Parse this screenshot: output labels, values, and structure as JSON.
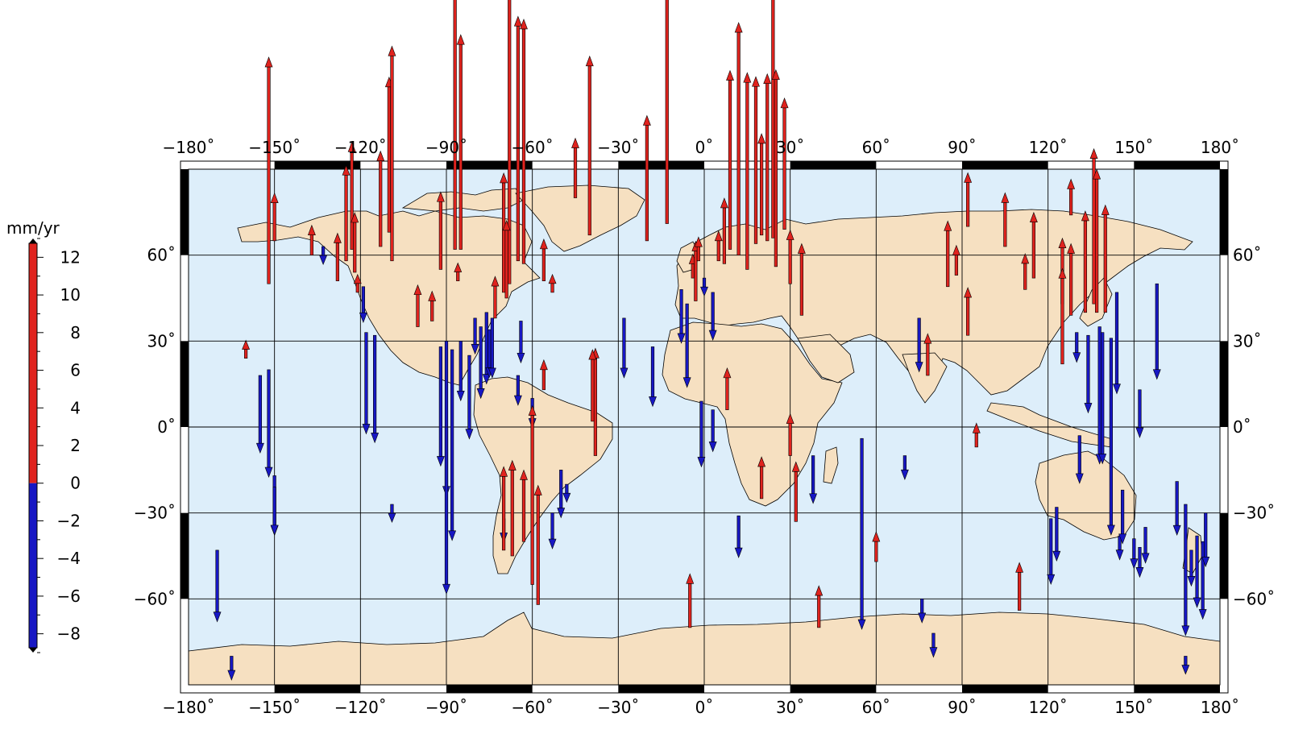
{
  "map": {
    "extent": {
      "lon": [
        -180,
        180
      ],
      "lat": [
        -90,
        90
      ]
    },
    "projection": "cylindrical",
    "lon_ticks": [
      -180,
      -150,
      -120,
      -90,
      -60,
      -30,
      0,
      30,
      60,
      90,
      120,
      150,
      180
    ],
    "lat_ticks": [
      60,
      30,
      0,
      -30,
      -60
    ],
    "lon_tick_labels": [
      "−180˚",
      "−150˚",
      "−120˚",
      "−90˚",
      "−60˚",
      "−30˚",
      "0˚",
      "30˚",
      "60˚",
      "90˚",
      "120˚",
      "150˚",
      "180˚"
    ],
    "lat_tick_labels": [
      "60˚",
      "30˚",
      "0˚",
      "−30˚",
      "−60˚"
    ],
    "grid": true,
    "colors": {
      "ocean": "#ddeefa",
      "land": "#f6e0c1",
      "coast": "#000000",
      "up": "#e0231e",
      "down": "#1717c4"
    }
  },
  "colorbar": {
    "unit_label": "mm/yr",
    "range": [
      -9,
      13
    ],
    "split_value": 0,
    "tick_labels": [
      "12",
      "10",
      "8",
      "6",
      "4",
      "2",
      "0",
      "−2",
      "−4",
      "−6",
      "−8"
    ],
    "tick_values": [
      12,
      10,
      8,
      6,
      4,
      2,
      0,
      -2,
      -4,
      -6,
      -8
    ]
  },
  "chart_data": {
    "type": "scatter",
    "description_units": "lon/lat in degrees, v = vertical rate in mm/yr (positive up)",
    "stations": [
      {
        "lon": -152,
        "lat": 50,
        "v": 38
      },
      {
        "lon": -150,
        "lat": 65,
        "v": 8
      },
      {
        "lon": -137,
        "lat": 60,
        "v": 5
      },
      {
        "lon": -133,
        "lat": 63,
        "v": -3
      },
      {
        "lon": -128,
        "lat": 51,
        "v": 8
      },
      {
        "lon": -125,
        "lat": 58,
        "v": 16
      },
      {
        "lon": -123,
        "lat": 62,
        "v": 18
      },
      {
        "lon": -122,
        "lat": 54,
        "v": 10
      },
      {
        "lon": -121,
        "lat": 47,
        "v": 3
      },
      {
        "lon": -119,
        "lat": 49,
        "v": -6
      },
      {
        "lon": -118,
        "lat": 33,
        "v": -17
      },
      {
        "lon": -115,
        "lat": 32,
        "v": -18
      },
      {
        "lon": -113,
        "lat": 63,
        "v": 16
      },
      {
        "lon": -110,
        "lat": 68,
        "v": 26
      },
      {
        "lon": -109,
        "lat": 58,
        "v": 36
      },
      {
        "lon": -100,
        "lat": 35,
        "v": 7
      },
      {
        "lon": -95,
        "lat": 37,
        "v": 5
      },
      {
        "lon": -92,
        "lat": 55,
        "v": 13
      },
      {
        "lon": -87,
        "lat": 62,
        "v": 47
      },
      {
        "lon": -85,
        "lat": 62,
        "v": 36
      },
      {
        "lon": -86,
        "lat": 51,
        "v": 3
      },
      {
        "lon": -92,
        "lat": 28,
        "v": -20
      },
      {
        "lon": -90,
        "lat": 30,
        "v": -26
      },
      {
        "lon": -88,
        "lat": 27,
        "v": -32
      },
      {
        "lon": -85,
        "lat": 30,
        "v": -10
      },
      {
        "lon": -82,
        "lat": 25,
        "v": -14
      },
      {
        "lon": -80,
        "lat": 38,
        "v": -6
      },
      {
        "lon": -78,
        "lat": 35,
        "v": -12
      },
      {
        "lon": -76,
        "lat": 40,
        "v": -12
      },
      {
        "lon": -75,
        "lat": 34,
        "v": -8
      },
      {
        "lon": -74,
        "lat": 38,
        "v": -10
      },
      {
        "lon": -73,
        "lat": 38,
        "v": 7
      },
      {
        "lon": -70,
        "lat": 47,
        "v": 20
      },
      {
        "lon": -68,
        "lat": 50,
        "v": 65
      },
      {
        "lon": -65,
        "lat": 58,
        "v": 41
      },
      {
        "lon": -63,
        "lat": 57,
        "v": 41
      },
      {
        "lon": -64,
        "lat": 37,
        "v": -7
      },
      {
        "lon": -65,
        "lat": 18,
        "v": -5
      },
      {
        "lon": -69,
        "lat": 45,
        "v": 13
      },
      {
        "lon": -60,
        "lat": 10,
        "v": -5
      },
      {
        "lon": -56,
        "lat": 13,
        "v": 5
      },
      {
        "lon": -53,
        "lat": 47,
        "v": 3
      },
      {
        "lon": -56,
        "lat": 51,
        "v": 7
      },
      {
        "lon": -50,
        "lat": -15,
        "v": -8
      },
      {
        "lon": -48,
        "lat": -20,
        "v": -3
      },
      {
        "lon": -40,
        "lat": 67,
        "v": 30
      },
      {
        "lon": -38,
        "lat": -10,
        "v": 18
      },
      {
        "lon": -39,
        "lat": 2,
        "v": 12
      },
      {
        "lon": -45,
        "lat": 80,
        "v": 10
      },
      {
        "lon": -20,
        "lat": 65,
        "v": 21
      },
      {
        "lon": -13,
        "lat": 71,
        "v": 55
      },
      {
        "lon": -28,
        "lat": 38,
        "v": -10
      },
      {
        "lon": -18,
        "lat": 28,
        "v": -10
      },
      {
        "lon": -8,
        "lat": 48,
        "v": -9
      },
      {
        "lon": -6,
        "lat": 43,
        "v": -14
      },
      {
        "lon": -4,
        "lat": 52,
        "v": 4
      },
      {
        "lon": -3,
        "lat": 44,
        "v": 10
      },
      {
        "lon": -2,
        "lat": 58,
        "v": 4
      },
      {
        "lon": 0,
        "lat": 52,
        "v": -3
      },
      {
        "lon": 3,
        "lat": 47,
        "v": -8
      },
      {
        "lon": 5,
        "lat": 58,
        "v": 5
      },
      {
        "lon": 7,
        "lat": 57,
        "v": 11
      },
      {
        "lon": 9,
        "lat": 62,
        "v": 30
      },
      {
        "lon": 12,
        "lat": 60,
        "v": 39
      },
      {
        "lon": 15,
        "lat": 55,
        "v": 33
      },
      {
        "lon": 18,
        "lat": 64,
        "v": 28
      },
      {
        "lon": 20,
        "lat": 67,
        "v": 17
      },
      {
        "lon": 22,
        "lat": 65,
        "v": 28
      },
      {
        "lon": 24,
        "lat": 66,
        "v": 47
      },
      {
        "lon": 25,
        "lat": 56,
        "v": 33
      },
      {
        "lon": 28,
        "lat": 69,
        "v": 22
      },
      {
        "lon": 30,
        "lat": 50,
        "v": 9
      },
      {
        "lon": 34,
        "lat": 39,
        "v": 12
      },
      {
        "lon": -1,
        "lat": 9,
        "v": -11
      },
      {
        "lon": 3,
        "lat": 6,
        "v": -7
      },
      {
        "lon": 8,
        "lat": 6,
        "v": 7
      },
      {
        "lon": 12,
        "lat": -31,
        "v": -7
      },
      {
        "lon": 20,
        "lat": -25,
        "v": 7
      },
      {
        "lon": 30,
        "lat": -10,
        "v": 7
      },
      {
        "lon": 32,
        "lat": -33,
        "v": 10
      },
      {
        "lon": 38,
        "lat": -10,
        "v": -8
      },
      {
        "lon": 55,
        "lat": -4,
        "v": -32
      },
      {
        "lon": 60,
        "lat": -47,
        "v": 5
      },
      {
        "lon": 70,
        "lat": -10,
        "v": -4
      },
      {
        "lon": 75,
        "lat": 38,
        "v": -9
      },
      {
        "lon": 76,
        "lat": -60,
        "v": -4
      },
      {
        "lon": 78,
        "lat": 18,
        "v": 7
      },
      {
        "lon": 85,
        "lat": 49,
        "v": 11
      },
      {
        "lon": 88,
        "lat": 53,
        "v": 5
      },
      {
        "lon": 92,
        "lat": 70,
        "v": 9
      },
      {
        "lon": 92,
        "lat": 32,
        "v": 8
      },
      {
        "lon": 95,
        "lat": -7,
        "v": 4
      },
      {
        "lon": 105,
        "lat": 63,
        "v": 9
      },
      {
        "lon": 112,
        "lat": 48,
        "v": 6
      },
      {
        "lon": 110,
        "lat": -64,
        "v": 8
      },
      {
        "lon": 115,
        "lat": 52,
        "v": 11
      },
      {
        "lon": 121,
        "lat": -32,
        "v": -11
      },
      {
        "lon": 123,
        "lat": -28,
        "v": -9
      },
      {
        "lon": 125,
        "lat": 43,
        "v": 11
      },
      {
        "lon": 125,
        "lat": 22,
        "v": 16
      },
      {
        "lon": 128,
        "lat": 74,
        "v": 6
      },
      {
        "lon": 128,
        "lat": 39,
        "v": 12
      },
      {
        "lon": 130,
        "lat": 33,
        "v": -5
      },
      {
        "lon": 131,
        "lat": -3,
        "v": -8
      },
      {
        "lon": 133,
        "lat": 40,
        "v": 17
      },
      {
        "lon": 134,
        "lat": 32,
        "v": -13
      },
      {
        "lon": 136,
        "lat": 43,
        "v": 26
      },
      {
        "lon": 137,
        "lat": 40,
        "v": 24
      },
      {
        "lon": 138,
        "lat": 35,
        "v": -23
      },
      {
        "lon": 139,
        "lat": 33,
        "v": -22
      },
      {
        "lon": 140,
        "lat": 40,
        "v": 18
      },
      {
        "lon": 142,
        "lat": 31,
        "v": -33
      },
      {
        "lon": 144,
        "lat": 47,
        "v": -17
      },
      {
        "lon": 145,
        "lat": -38,
        "v": -4
      },
      {
        "lon": 146,
        "lat": -22,
        "v": -9
      },
      {
        "lon": 150,
        "lat": -39,
        "v": -5
      },
      {
        "lon": 152,
        "lat": -42,
        "v": -5
      },
      {
        "lon": 152,
        "lat": 13,
        "v": -8
      },
      {
        "lon": 154,
        "lat": -35,
        "v": -6
      },
      {
        "lon": 158,
        "lat": 50,
        "v": -16
      },
      {
        "lon": 165,
        "lat": -19,
        "v": -9
      },
      {
        "lon": 168,
        "lat": -27,
        "v": -22
      },
      {
        "lon": 170,
        "lat": -43,
        "v": -6
      },
      {
        "lon": 172,
        "lat": -38,
        "v": -12
      },
      {
        "lon": 174,
        "lat": -40,
        "v": -13
      },
      {
        "lon": 175,
        "lat": -30,
        "v": -9
      },
      {
        "lon": -152,
        "lat": 20,
        "v": -18
      },
      {
        "lon": -155,
        "lat": 18,
        "v": -13
      },
      {
        "lon": -160,
        "lat": 24,
        "v": 3
      },
      {
        "lon": -150,
        "lat": -17,
        "v": -10
      },
      {
        "lon": -150,
        "lat": -21,
        "v": -8
      },
      {
        "lon": -170,
        "lat": -43,
        "v": -12
      },
      {
        "lon": -109,
        "lat": -27,
        "v": -3
      },
      {
        "lon": -90,
        "lat": 0,
        "v": -28
      },
      {
        "lon": -70,
        "lat": -32,
        "v": -4
      },
      {
        "lon": -70,
        "lat": -43,
        "v": 14
      },
      {
        "lon": -67,
        "lat": -45,
        "v": 16
      },
      {
        "lon": -60,
        "lat": -55,
        "v": 30
      },
      {
        "lon": -63,
        "lat": -40,
        "v": 12
      },
      {
        "lon": -58,
        "lat": -62,
        "v": 20
      },
      {
        "lon": -53,
        "lat": -30,
        "v": -6
      },
      {
        "lon": -5,
        "lat": -70,
        "v": 9
      },
      {
        "lon": 40,
        "lat": -70,
        "v": 7
      },
      {
        "lon": -165,
        "lat": -80,
        "v": -4
      },
      {
        "lon": 168,
        "lat": -80,
        "v": -3
      },
      {
        "lon": 80,
        "lat": -72,
        "v": -4
      }
    ]
  }
}
